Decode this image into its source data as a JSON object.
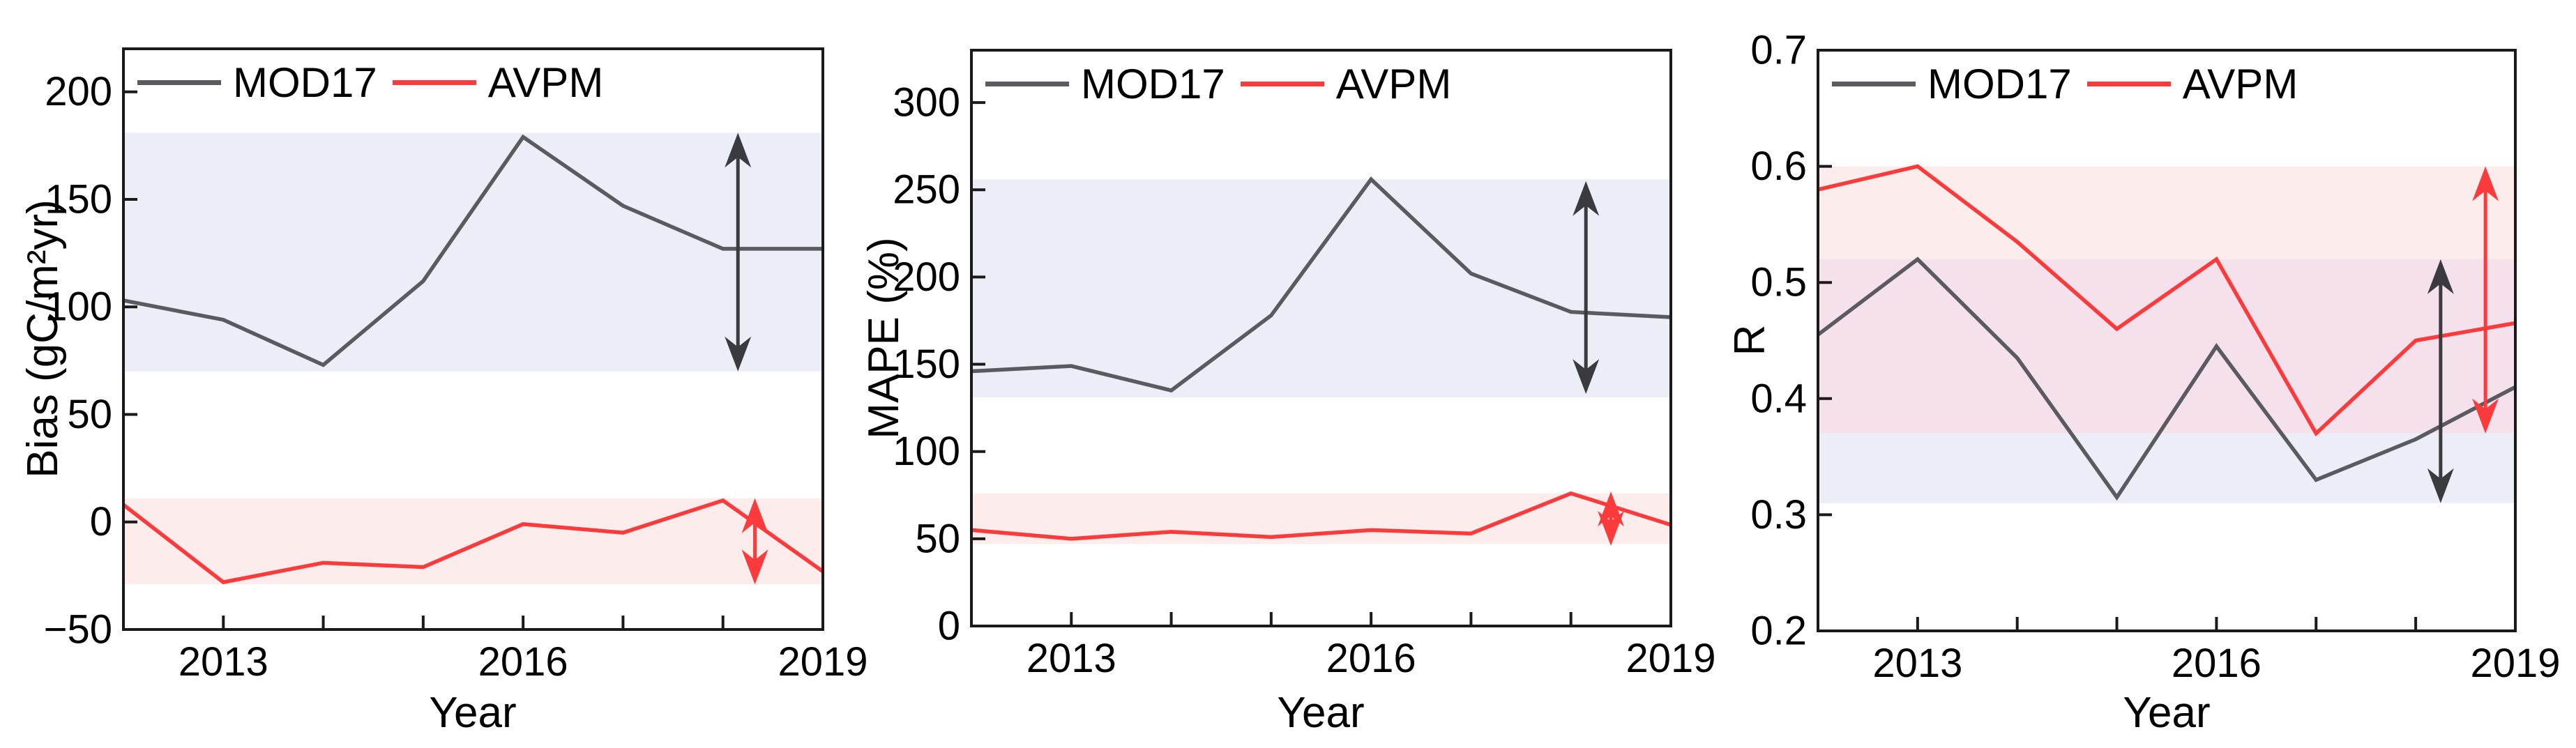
{
  "figure": {
    "background": "#ffffff",
    "axis_color": "#1a1a1a",
    "band_blue": "#EDEDF8",
    "band_pink": "#FCECEC",
    "band_overlap": "#F4E1EC"
  },
  "chart_data": [
    {
      "type": "line",
      "xlabel": "Year",
      "ylabel": "Bias (gC/m²yr)",
      "x": [
        2012,
        2013,
        2014,
        2015,
        2016,
        2017,
        2018,
        2019
      ],
      "xlim": [
        2012,
        2019
      ],
      "ylim": [
        -50,
        220
      ],
      "yticks": [
        -50,
        0,
        50,
        100,
        150,
        200
      ],
      "ytick_labels": [
        "−50",
        "0",
        "50",
        "100",
        "150",
        "200"
      ],
      "xticks_labeled": [
        2013,
        2016,
        2019
      ],
      "xtick_labels": [
        "2013",
        "2016",
        "2019"
      ],
      "xticks_minor": [
        2014,
        2015,
        2017,
        2018
      ],
      "grid": false,
      "legend_position": "top-left",
      "series": [
        {
          "name": "MOD17",
          "color": "#5A5A60",
          "values": [
            103,
            94,
            73,
            112,
            179,
            147,
            127,
            127
          ]
        },
        {
          "name": "AVPM",
          "color": "#FB3B3B",
          "values": [
            8,
            -28,
            -19,
            -21,
            -1,
            -5,
            10,
            -23
          ]
        }
      ],
      "bands": [
        {
          "from": 70,
          "to": 181,
          "color": "#EDEDF8",
          "meaning": "MOD17 range"
        },
        {
          "from": -29,
          "to": 11,
          "color": "#FCECEC",
          "meaning": "AVPM range"
        }
      ],
      "arrows": [
        {
          "x": 2018.15,
          "from": 70,
          "to": 181,
          "color": "#3A3A40"
        },
        {
          "x": 2018.32,
          "from": -29,
          "to": 11,
          "color": "#FB3B3B"
        }
      ]
    },
    {
      "type": "line",
      "xlabel": "Year",
      "ylabel": "MAPE (%)",
      "x": [
        2012,
        2013,
        2014,
        2015,
        2016,
        2017,
        2018,
        2019
      ],
      "xlim": [
        2012,
        2019
      ],
      "ylim": [
        0,
        330
      ],
      "yticks": [
        0,
        50,
        100,
        150,
        200,
        250,
        300
      ],
      "ytick_labels": [
        "0",
        "50",
        "100",
        "150",
        "200",
        "250",
        "300"
      ],
      "xticks_labeled": [
        2013,
        2016,
        2019
      ],
      "xtick_labels": [
        "2013",
        "2016",
        "2019"
      ],
      "xticks_minor": [
        2014,
        2015,
        2017,
        2018
      ],
      "grid": false,
      "legend_position": "top-left",
      "series": [
        {
          "name": "MOD17",
          "color": "#5A5A60",
          "values": [
            146,
            149,
            135,
            178,
            256,
            202,
            180,
            177
          ]
        },
        {
          "name": "AVPM",
          "color": "#FB3B3B",
          "values": [
            55,
            50,
            54,
            51,
            55,
            53,
            76,
            58
          ]
        }
      ],
      "bands": [
        {
          "from": 131,
          "to": 256,
          "color": "#EDEDF8",
          "meaning": "MOD17 range"
        },
        {
          "from": 47,
          "to": 76,
          "color": "#FCECEC",
          "meaning": "AVPM range"
        }
      ],
      "arrows": [
        {
          "x": 2018.15,
          "from": 133,
          "to": 255,
          "color": "#3A3A40"
        },
        {
          "x": 2018.4,
          "from": 46,
          "to": 77,
          "color": "#FB3B3B"
        }
      ]
    },
    {
      "type": "line",
      "xlabel": "Year",
      "ylabel": "R",
      "x": [
        2012,
        2013,
        2014,
        2015,
        2016,
        2017,
        2018,
        2019
      ],
      "xlim": [
        2012,
        2019
      ],
      "ylim": [
        0.2,
        0.7
      ],
      "yticks": [
        0.2,
        0.3,
        0.4,
        0.5,
        0.6,
        0.7
      ],
      "ytick_labels": [
        "0.2",
        "0.3",
        "0.4",
        "0.5",
        "0.6",
        "0.7"
      ],
      "xticks_labeled": [
        2013,
        2016,
        2019
      ],
      "xtick_labels": [
        "2013",
        "2016",
        "2019"
      ],
      "xticks_minor": [
        2014,
        2015,
        2017,
        2018
      ],
      "grid": false,
      "legend_position": "top-left",
      "series": [
        {
          "name": "MOD17",
          "color": "#5A5A60",
          "values": [
            0.455,
            0.52,
            0.435,
            0.315,
            0.445,
            0.33,
            0.365,
            0.41
          ]
        },
        {
          "name": "AVPM",
          "color": "#FB3B3B",
          "values": [
            0.58,
            0.6,
            0.535,
            0.46,
            0.52,
            0.37,
            0.45,
            0.465
          ]
        }
      ],
      "bands": [
        {
          "from": 0.52,
          "to": 0.6,
          "color": "#FCECEC",
          "meaning": "AVPM range only"
        },
        {
          "from": 0.37,
          "to": 0.52,
          "color": "#F4E1EC",
          "meaning": "overlap of ranges"
        },
        {
          "from": 0.31,
          "to": 0.37,
          "color": "#EDEDF8",
          "meaning": "MOD17 range only"
        }
      ],
      "arrows": [
        {
          "x": 2018.25,
          "from": 0.31,
          "to": 0.52,
          "color": "#3A3A40"
        },
        {
          "x": 2018.7,
          "from": 0.37,
          "to": 0.6,
          "color": "#FB3B3B"
        }
      ]
    }
  ]
}
